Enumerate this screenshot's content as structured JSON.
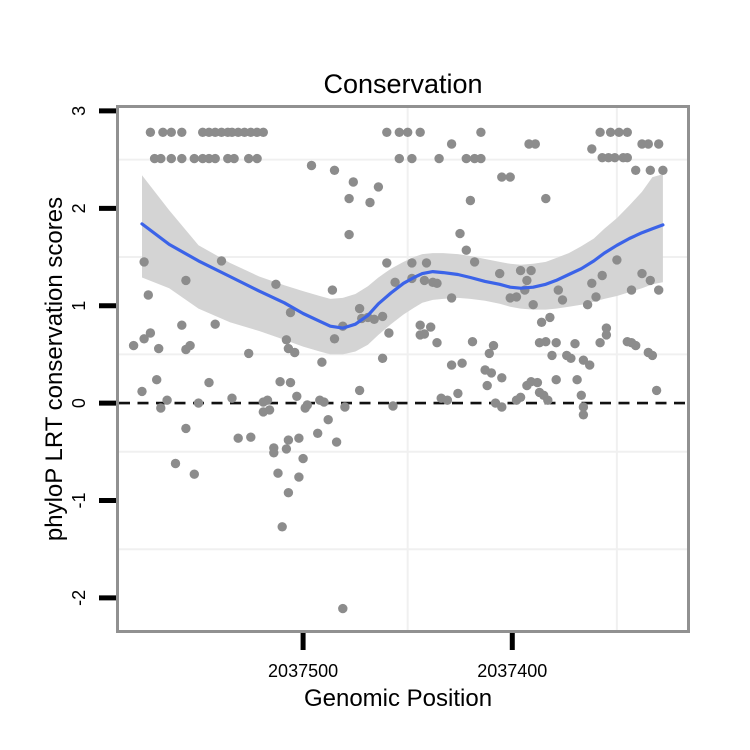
{
  "chart_data": {
    "type": "scatter",
    "title": "Conservation",
    "xlabel": "Genomic Position",
    "ylabel": "phyloP LRT conservation scores",
    "xlim": [
      2037588,
      2037316
    ],
    "ylim": [
      -2.34,
      3.03
    ],
    "x_axis_reversed": true,
    "x_ticks": [
      {
        "value": 2037500,
        "label": "2037500"
      },
      {
        "value": 2037400,
        "label": "2037400"
      }
    ],
    "y_ticks": [
      {
        "value": 3,
        "label": "3"
      },
      {
        "value": 2,
        "label": "2"
      },
      {
        "value": 1,
        "label": "1"
      },
      {
        "value": 0,
        "label": "0"
      },
      {
        "value": -1,
        "label": "-1"
      },
      {
        "value": -2,
        "label": "-2"
      }
    ],
    "x_gridlines": [
      2037450,
      2037350
    ],
    "y_gridlines": [
      2.5,
      1.5,
      0.5,
      -0.5,
      -1.5
    ],
    "hline": {
      "y": 0,
      "style": "dashed",
      "color": "#111111"
    },
    "legend": "none",
    "points": [
      [
        2037573,
        2.78
      ],
      [
        2037567,
        2.78
      ],
      [
        2037563,
        2.78
      ],
      [
        2037558,
        2.78
      ],
      [
        2037548,
        2.78
      ],
      [
        2037545,
        2.78
      ],
      [
        2037542,
        2.78
      ],
      [
        2037539,
        2.78
      ],
      [
        2037536,
        2.78
      ],
      [
        2037534,
        2.78
      ],
      [
        2037531,
        2.78
      ],
      [
        2037528,
        2.78
      ],
      [
        2037525,
        2.78
      ],
      [
        2037522,
        2.78
      ],
      [
        2037519,
        2.78
      ],
      [
        2037460,
        2.78
      ],
      [
        2037454,
        2.78
      ],
      [
        2037450,
        2.78
      ],
      [
        2037444,
        2.78
      ],
      [
        2037415,
        2.78
      ],
      [
        2037358,
        2.78
      ],
      [
        2037353,
        2.78
      ],
      [
        2037349,
        2.78
      ],
      [
        2037345,
        2.78
      ],
      [
        2037429,
        2.66
      ],
      [
        2037392,
        2.66
      ],
      [
        2037389,
        2.66
      ],
      [
        2037338,
        2.66
      ],
      [
        2037335,
        2.66
      ],
      [
        2037330,
        2.66
      ],
      [
        2037362,
        2.61
      ],
      [
        2037571,
        2.51
      ],
      [
        2037568,
        2.51
      ],
      [
        2037563,
        2.51
      ],
      [
        2037558,
        2.51
      ],
      [
        2037552,
        2.51
      ],
      [
        2037548,
        2.51
      ],
      [
        2037545,
        2.51
      ],
      [
        2037542,
        2.51
      ],
      [
        2037536,
        2.51
      ],
      [
        2037533,
        2.51
      ],
      [
        2037526,
        2.51
      ],
      [
        2037522,
        2.51
      ],
      [
        2037454,
        2.51
      ],
      [
        2037448,
        2.51
      ],
      [
        2037435,
        2.51
      ],
      [
        2037422,
        2.51
      ],
      [
        2037418,
        2.51
      ],
      [
        2037415,
        2.51
      ],
      [
        2037357,
        2.52
      ],
      [
        2037354,
        2.52
      ],
      [
        2037351,
        2.52
      ],
      [
        2037347,
        2.52
      ],
      [
        2037345,
        2.52
      ],
      [
        2037341,
        2.39
      ],
      [
        2037334,
        2.39
      ],
      [
        2037328,
        2.39
      ],
      [
        2037496,
        2.44
      ],
      [
        2037485,
        2.39
      ],
      [
        2037476,
        2.27
      ],
      [
        2037464,
        2.22
      ],
      [
        2037478,
        2.1
      ],
      [
        2037468,
        2.06
      ],
      [
        2037405,
        2.32
      ],
      [
        2037401,
        2.32
      ],
      [
        2037384,
        2.1
      ],
      [
        2037420,
        2.08
      ],
      [
        2037425,
        1.74
      ],
      [
        2037478,
        1.73
      ],
      [
        2037576,
        1.45
      ],
      [
        2037556,
        1.26
      ],
      [
        2037574,
        1.11
      ],
      [
        2037539,
        1.46
      ],
      [
        2037513,
        1.22
      ],
      [
        2037486,
        1.16
      ],
      [
        2037506,
        0.93
      ],
      [
        2037460,
        1.44
      ],
      [
        2037456,
        1.24
      ],
      [
        2037473,
        0.97
      ],
      [
        2037422,
        1.57
      ],
      [
        2037418,
        1.45
      ],
      [
        2037448,
        1.44
      ],
      [
        2037441,
        1.44
      ],
      [
        2037448,
        1.28
      ],
      [
        2037442,
        1.26
      ],
      [
        2037438,
        1.24
      ],
      [
        2037436,
        1.23
      ],
      [
        2037429,
        1.08
      ],
      [
        2037406,
        1.33
      ],
      [
        2037396,
        1.36
      ],
      [
        2037391,
        1.36
      ],
      [
        2037393,
        1.26
      ],
      [
        2037401,
        1.08
      ],
      [
        2037398,
        1.09
      ],
      [
        2037394,
        1.16
      ],
      [
        2037390,
        1.01
      ],
      [
        2037378,
        1.16
      ],
      [
        2037376,
        1.06
      ],
      [
        2037364,
        1.01
      ],
      [
        2037360,
        1.09
      ],
      [
        2037357,
        1.31
      ],
      [
        2037362,
        1.23
      ],
      [
        2037350,
        1.47
      ],
      [
        2037343,
        1.16
      ],
      [
        2037338,
        1.33
      ],
      [
        2037334,
        1.26
      ],
      [
        2037330,
        1.16
      ],
      [
        2037382,
        0.88
      ],
      [
        2037386,
        0.83
      ],
      [
        2037355,
        0.77
      ],
      [
        2037581,
        0.59
      ],
      [
        2037576,
        0.66
      ],
      [
        2037573,
        0.72
      ],
      [
        2037569,
        0.56
      ],
      [
        2037558,
        0.8
      ],
      [
        2037556,
        0.55
      ],
      [
        2037554,
        0.59
      ],
      [
        2037542,
        0.81
      ],
      [
        2037526,
        0.51
      ],
      [
        2037508,
        0.65
      ],
      [
        2037507,
        0.56
      ],
      [
        2037504,
        0.52
      ],
      [
        2037491,
        0.42
      ],
      [
        2037472,
        0.87
      ],
      [
        2037469,
        0.88
      ],
      [
        2037466,
        0.86
      ],
      [
        2037462,
        0.89
      ],
      [
        2037485,
        0.66
      ],
      [
        2037481,
        0.79
      ],
      [
        2037459,
        0.72
      ],
      [
        2037462,
        0.46
      ],
      [
        2037570,
        0.24
      ],
      [
        2037577,
        0.12
      ],
      [
        2037565,
        0.03
      ],
      [
        2037568,
        -0.05
      ],
      [
        2037550,
        0.0
      ],
      [
        2037545,
        0.21
      ],
      [
        2037534,
        0.05
      ],
      [
        2037519,
        0.01
      ],
      [
        2037517,
        0.03
      ],
      [
        2037519,
        -0.09
      ],
      [
        2037516,
        -0.07
      ],
      [
        2037511,
        0.22
      ],
      [
        2037503,
        0.07
      ],
      [
        2037499,
        -0.05
      ],
      [
        2037498,
        -0.02
      ],
      [
        2037506,
        0.21
      ],
      [
        2037492,
        0.03
      ],
      [
        2037490,
        0.01
      ],
      [
        2037488,
        -0.17
      ],
      [
        2037480,
        -0.04
      ],
      [
        2037473,
        0.13
      ],
      [
        2037457,
        -0.03
      ],
      [
        2037556,
        -0.26
      ],
      [
        2037531,
        -0.36
      ],
      [
        2037525,
        -0.35
      ],
      [
        2037507,
        -0.38
      ],
      [
        2037502,
        -0.36
      ],
      [
        2037493,
        -0.31
      ],
      [
        2037484,
        -0.4
      ],
      [
        2037514,
        -0.46
      ],
      [
        2037444,
        0.8
      ],
      [
        2037439,
        0.78
      ],
      [
        2037444,
        0.7
      ],
      [
        2037442,
        0.71
      ],
      [
        2037436,
        0.62
      ],
      [
        2037419,
        0.63
      ],
      [
        2037409,
        0.59
      ],
      [
        2037411,
        0.51
      ],
      [
        2037429,
        0.39
      ],
      [
        2037424,
        0.41
      ],
      [
        2037413,
        0.34
      ],
      [
        2037410,
        0.31
      ],
      [
        2037405,
        0.26
      ],
      [
        2037412,
        0.18
      ],
      [
        2037387,
        0.62
      ],
      [
        2037384,
        0.63
      ],
      [
        2037379,
        0.62
      ],
      [
        2037370,
        0.61
      ],
      [
        2037381,
        0.49
      ],
      [
        2037374,
        0.49
      ],
      [
        2037372,
        0.46
      ],
      [
        2037366,
        0.44
      ],
      [
        2037363,
        0.39
      ],
      [
        2037358,
        0.62
      ],
      [
        2037355,
        0.7
      ],
      [
        2037379,
        0.24
      ],
      [
        2037369,
        0.24
      ],
      [
        2037393,
        0.18
      ],
      [
        2037391,
        0.22
      ],
      [
        2037388,
        0.21
      ],
      [
        2037398,
        0.03
      ],
      [
        2037396,
        0.06
      ],
      [
        2037387,
        0.11
      ],
      [
        2037385,
        0.08
      ],
      [
        2037383,
        0.03
      ],
      [
        2037367,
        0.08
      ],
      [
        2037366,
        -0.04
      ],
      [
        2037366,
        -0.12
      ],
      [
        2037434,
        0.05
      ],
      [
        2037431,
        0.03
      ],
      [
        2037426,
        0.1
      ],
      [
        2037408,
        0.0
      ],
      [
        2037405,
        -0.04
      ],
      [
        2037345,
        0.63
      ],
      [
        2037343,
        0.62
      ],
      [
        2037341,
        0.59
      ],
      [
        2037335,
        0.52
      ],
      [
        2037333,
        0.49
      ],
      [
        2037331,
        0.13
      ],
      [
        2037561,
        -0.62
      ],
      [
        2037552,
        -0.73
      ],
      [
        2037514,
        -0.51
      ],
      [
        2037508,
        -0.47
      ],
      [
        2037500,
        -0.57
      ],
      [
        2037512,
        -0.72
      ],
      [
        2037502,
        -0.76
      ],
      [
        2037507,
        -0.92
      ],
      [
        2037510,
        -1.27
      ],
      [
        2037481,
        -2.11
      ]
    ],
    "smooth_line": [
      [
        2037577,
        1.84
      ],
      [
        2037564,
        1.63
      ],
      [
        2037550,
        1.46
      ],
      [
        2037535,
        1.3
      ],
      [
        2037521,
        1.15
      ],
      [
        2037509,
        1.03
      ],
      [
        2037500,
        0.92
      ],
      [
        2037492,
        0.84
      ],
      [
        2037487,
        0.79
      ],
      [
        2037481,
        0.77
      ],
      [
        2037475,
        0.81
      ],
      [
        2037469,
        0.9
      ],
      [
        2037464,
        1.02
      ],
      [
        2037458,
        1.13
      ],
      [
        2037452,
        1.23
      ],
      [
        2037447,
        1.29
      ],
      [
        2037443,
        1.33
      ],
      [
        2037438,
        1.35
      ],
      [
        2037433,
        1.34
      ],
      [
        2037426,
        1.32
      ],
      [
        2037420,
        1.29
      ],
      [
        2037413,
        1.25
      ],
      [
        2037406,
        1.22
      ],
      [
        2037401,
        1.19
      ],
      [
        2037396,
        1.18
      ],
      [
        2037390,
        1.19
      ],
      [
        2037384,
        1.22
      ],
      [
        2037379,
        1.26
      ],
      [
        2037373,
        1.32
      ],
      [
        2037367,
        1.38
      ],
      [
        2037361,
        1.46
      ],
      [
        2037356,
        1.54
      ],
      [
        2037350,
        1.62
      ],
      [
        2037344,
        1.69
      ],
      [
        2037338,
        1.75
      ],
      [
        2037333,
        1.79
      ],
      [
        2037328,
        1.83
      ]
    ],
    "confidence_band": [
      [
        2037577,
        1.29,
        2.34
      ],
      [
        2037564,
        1.18,
        1.98
      ],
      [
        2037550,
        0.97,
        1.62
      ],
      [
        2037535,
        0.83,
        1.44
      ],
      [
        2037521,
        0.74,
        1.3
      ],
      [
        2037509,
        0.65,
        1.21
      ],
      [
        2037500,
        0.58,
        1.15
      ],
      [
        2037492,
        0.53,
        1.1
      ],
      [
        2037487,
        0.5,
        1.07
      ],
      [
        2037481,
        0.5,
        1.08
      ],
      [
        2037475,
        0.53,
        1.12
      ],
      [
        2037469,
        0.6,
        1.2
      ],
      [
        2037464,
        0.7,
        1.29
      ],
      [
        2037458,
        0.81,
        1.38
      ],
      [
        2037452,
        0.91,
        1.45
      ],
      [
        2037447,
        0.98,
        1.5
      ],
      [
        2037443,
        1.03,
        1.53
      ],
      [
        2037438,
        1.06,
        1.54
      ],
      [
        2037433,
        1.07,
        1.54
      ],
      [
        2037426,
        1.08,
        1.53
      ],
      [
        2037420,
        1.07,
        1.51
      ],
      [
        2037413,
        1.05,
        1.48
      ],
      [
        2037406,
        1.02,
        1.45
      ],
      [
        2037401,
        0.99,
        1.43
      ],
      [
        2037396,
        0.97,
        1.42
      ],
      [
        2037390,
        0.96,
        1.43
      ],
      [
        2037384,
        0.96,
        1.45
      ],
      [
        2037379,
        0.97,
        1.49
      ],
      [
        2037373,
        0.99,
        1.54
      ],
      [
        2037367,
        1.01,
        1.61
      ],
      [
        2037361,
        1.04,
        1.69
      ],
      [
        2037356,
        1.07,
        1.79
      ],
      [
        2037350,
        1.1,
        1.9
      ],
      [
        2037344,
        1.14,
        2.03
      ],
      [
        2037338,
        1.18,
        2.17
      ],
      [
        2037333,
        1.22,
        2.32
      ],
      [
        2037328,
        1.24,
        2.35
      ]
    ],
    "colors": {
      "point": "#8C8C8C",
      "smooth_line": "#3B63E8",
      "band": "#D4D4D4",
      "gridline": "#F0F0F0",
      "panel_border": "#919191",
      "tick": "#000000",
      "hline": "#111111",
      "text": "#000000",
      "background": "#FFFFFF"
    }
  }
}
